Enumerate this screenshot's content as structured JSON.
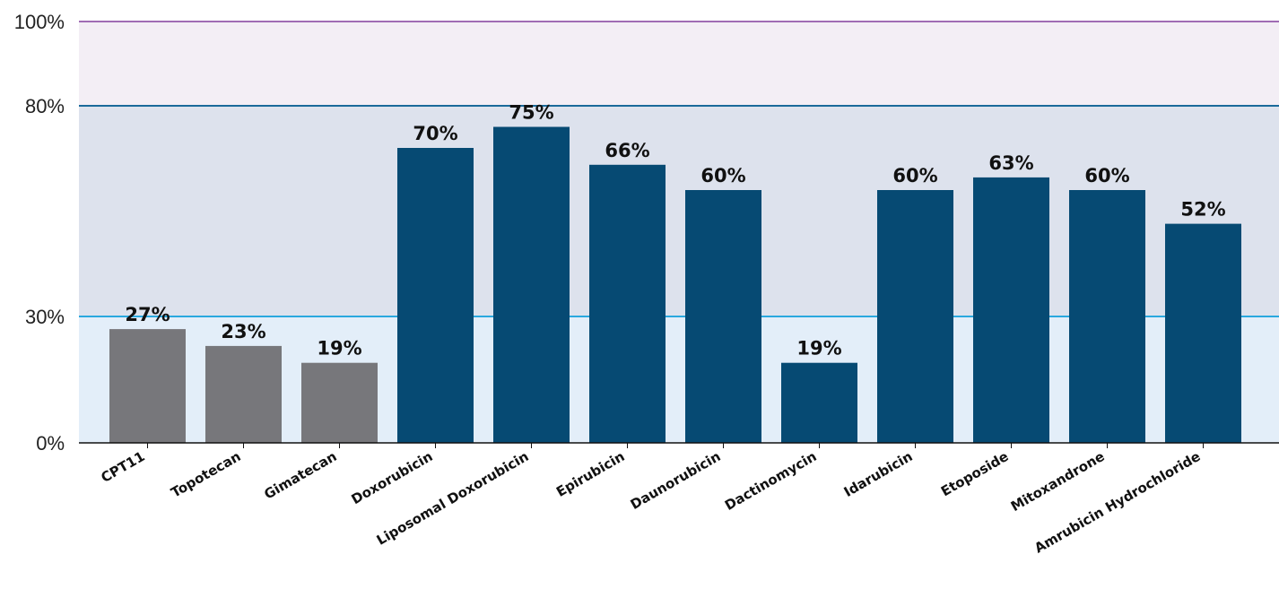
{
  "chart_data": {
    "type": "bar",
    "title": "",
    "xlabel": "",
    "ylabel": "",
    "categories": [
      "CPT11",
      "Topotecan",
      "Gimatecan",
      "Doxorubicin",
      "Liposomal Doxorubicin",
      "Epirubicin",
      "Daunorubicin",
      "Dactinomycin",
      "Idarubicin",
      "Etoposide",
      "Mitoxandrone",
      "Amrubicin Hydrochloride"
    ],
    "values": [
      27,
      23,
      19,
      70,
      75,
      66,
      60,
      19,
      60,
      63,
      60,
      52
    ],
    "data_labels": [
      "27%",
      "23%",
      "19%",
      "70%",
      "75%",
      "66%",
      "60%",
      "19%",
      "60%",
      "63%",
      "60%",
      "52%"
    ],
    "bar_colors": [
      "#77777b",
      "#77777b",
      "#77777b",
      "#064a73",
      "#064a73",
      "#064a73",
      "#064a73",
      "#064a73",
      "#064a73",
      "#064a73",
      "#064a73",
      "#064a73"
    ],
    "ylim": [
      0,
      100
    ],
    "yticks": [
      0,
      30,
      80,
      100
    ],
    "ytick_labels": [
      "0%",
      "30%",
      "80%",
      "100%"
    ],
    "bands": [
      {
        "from": 0,
        "to": 30,
        "color": "#e3eef9",
        "line_color": "#2aa8df"
      },
      {
        "from": 30,
        "to": 80,
        "color": "#dde2ed",
        "line_color": "#1a6a9a"
      },
      {
        "from": 80,
        "to": 100,
        "color": "#f3eef5",
        "line_color": "#a06cb4"
      }
    ],
    "grid": false,
    "legend": "none"
  }
}
